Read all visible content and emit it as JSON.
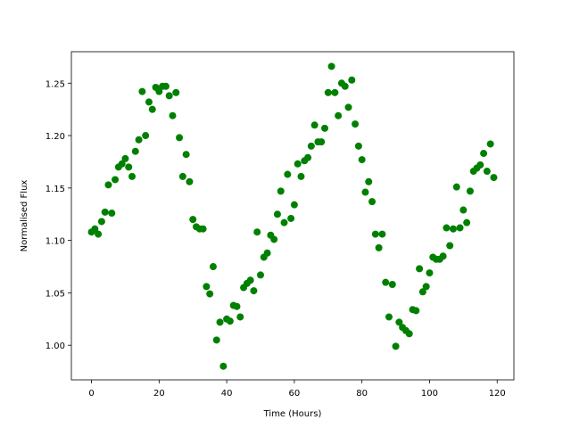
{
  "chart_data": {
    "type": "scatter",
    "x_label": "Time (Hours)",
    "y_label": "Normalised Flux",
    "color": "#008000",
    "x": [
      0,
      1,
      2,
      3,
      4,
      5,
      6,
      7,
      8,
      9,
      10,
      11,
      12,
      13,
      14,
      15,
      16,
      17,
      18,
      19,
      20,
      21,
      22,
      23,
      24,
      25,
      26,
      27,
      28,
      29,
      30,
      31,
      32,
      33,
      34,
      35,
      36,
      37,
      38,
      39,
      40,
      41,
      42,
      43,
      44,
      45,
      46,
      47,
      48,
      49,
      50,
      51,
      52,
      53,
      54,
      55,
      56,
      57,
      58,
      59,
      60,
      61,
      62,
      63,
      64,
      65,
      66,
      67,
      68,
      69,
      70,
      71,
      72,
      73,
      74,
      75,
      76,
      77,
      78,
      79,
      80,
      81,
      82,
      83,
      84,
      85,
      86,
      87,
      88,
      89,
      90,
      91,
      92,
      93,
      94,
      95,
      96,
      97,
      98,
      99,
      100,
      101,
      102,
      103,
      104,
      105,
      106,
      107,
      108,
      109,
      110,
      111,
      112,
      113,
      114,
      115,
      116,
      117,
      118,
      119
    ],
    "values": [
      1.108,
      1.111,
      1.106,
      1.118,
      1.127,
      1.153,
      1.126,
      1.158,
      1.17,
      1.173,
      1.178,
      1.17,
      1.161,
      1.185,
      1.196,
      1.242,
      1.2,
      1.232,
      1.225,
      1.246,
      1.242,
      1.247,
      1.247,
      1.238,
      1.219,
      1.241,
      1.198,
      1.161,
      1.182,
      1.156,
      1.12,
      1.113,
      1.111,
      1.111,
      1.056,
      1.049,
      1.075,
      1.005,
      1.022,
      0.98,
      1.025,
      1.023,
      1.038,
      1.037,
      1.027,
      1.055,
      1.059,
      1.062,
      1.052,
      1.108,
      1.067,
      1.084,
      1.088,
      1.105,
      1.101,
      1.125,
      1.147,
      1.117,
      1.163,
      1.121,
      1.134,
      1.173,
      1.161,
      1.176,
      1.179,
      1.19,
      1.21,
      1.194,
      1.194,
      1.207,
      1.241,
      1.266,
      1.241,
      1.219,
      1.25,
      1.247,
      1.227,
      1.253,
      1.211,
      1.19,
      1.177,
      1.146,
      1.156,
      1.137,
      1.106,
      1.093,
      1.106,
      1.06,
      1.027,
      1.058,
      0.999,
      1.022,
      1.017,
      1.014,
      1.011,
      1.034,
      1.033,
      1.073,
      1.051,
      1.056,
      1.069,
      1.084,
      1.082,
      1.082,
      1.085,
      1.112,
      1.095,
      1.111,
      1.151,
      1.112,
      1.129,
      1.117,
      1.147,
      1.166,
      1.169,
      1.172,
      1.183,
      1.166,
      1.192,
      1.16
    ],
    "xlim": [
      -5.95,
      124.95
    ],
    "xticks": [
      0,
      20,
      40,
      60,
      80,
      100,
      120
    ],
    "ylim": [
      0.967,
      1.28
    ],
    "yticks": [
      {
        "value": 1.0,
        "label": "1.00"
      },
      {
        "value": 1.05,
        "label": "1.05"
      },
      {
        "value": 1.1,
        "label": "1.10"
      },
      {
        "value": 1.15,
        "label": "1.15"
      },
      {
        "value": 1.2,
        "label": "1.20"
      },
      {
        "value": 1.25,
        "label": "1.25"
      }
    ]
  }
}
